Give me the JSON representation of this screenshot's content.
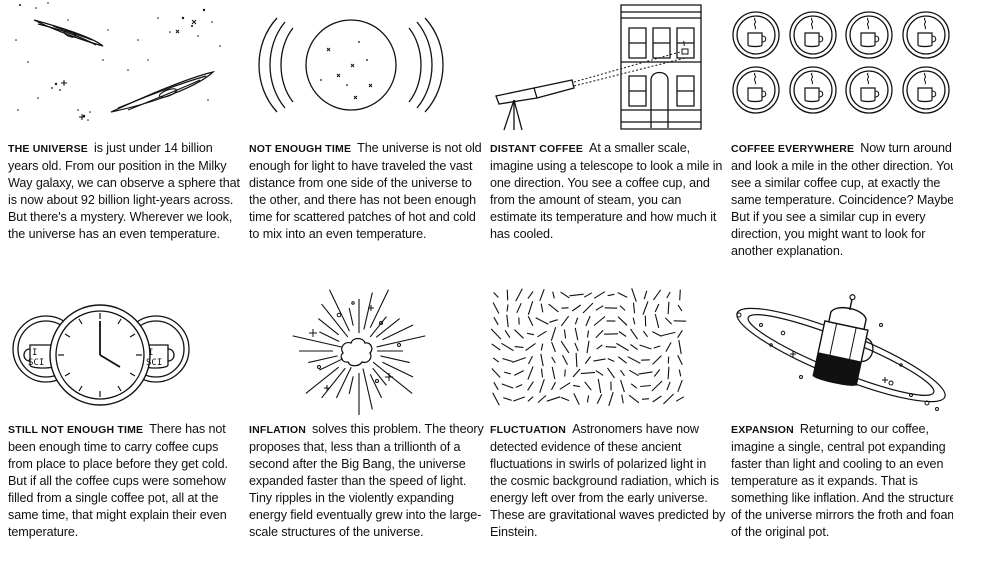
{
  "panels": [
    {
      "heading": "THE UNIVERSE",
      "body": "is just under 14 billion years old. From our position in the Milky Way galaxy, we can observe a sphere that is now about 92 billion light-years across. But there's a mystery. Wherever we look, the universe has an even temperature."
    },
    {
      "heading": "NOT ENOUGH TIME",
      "body": "The universe is not old enough for light to have traveled the vast distance from one side of the universe to the other, and there has not been enough time for scattered patches of hot and cold to mix into an even temperature."
    },
    {
      "heading": "DISTANT COFFEE",
      "body": "At a smaller scale, imagine using a telescope to look a mile in one direction. You see a coffee cup, and from the amount of steam, you can estimate its temperature and how much it has cooled."
    },
    {
      "heading": "COFFEE EVERYWHERE",
      "body": "Now turn around and look a mile in the other direction. You see a similar coffee cup, at exactly the same temperature. Coincidence? Maybe. But if you see a similar cup in every direction, you might want to look for another explanation."
    },
    {
      "heading": "STILL NOT ENOUGH TIME",
      "body": "There has not been enough time to carry coffee cups from place to place before they get cold. But if all the coffee cups were somehow filled from a single coffee pot, all at the same time, that might explain their even temperature."
    },
    {
      "heading": "INFLATION",
      "body": "solves this problem. The theory proposes that, less than a trillionth of a second after the Big Bang, the universe expanded faster than the speed of light. Tiny ripples in the violently expanding energy field eventually grew into the large-scale structures of the universe."
    },
    {
      "heading": "FLUCTUATION",
      "body": "Astronomers have now detected evidence of these ancient fluctuations in swirls of polarized light in the cosmic background radiation, which is energy left over from the early universe. These are gravitational waves predicted by Einstein."
    },
    {
      "heading": "EXPANSION",
      "body": "Returning to our coffee, imagine a single, central pot expanding faster than light and cooling to an even temperature as it expands. That is something like inflation. And the structure of the universe mirrors the froth and foam of the original pot."
    }
  ],
  "mug_text": {
    "line1": "I",
    "line2": "SCI"
  },
  "icons": {
    "p1": "galaxies-illustration",
    "p2": "universe-sphere-illustration",
    "p3": "telescope-building-illustration",
    "p4": "coffee-cups-grid-illustration",
    "p5": "clock-coffee-cups-illustration",
    "p6": "big-bang-burst-illustration",
    "p7": "polarization-field-illustration",
    "p8": "expanding-coffee-pot-illustration"
  },
  "colors": {
    "ink": "#111111",
    "background": "#ffffff"
  }
}
